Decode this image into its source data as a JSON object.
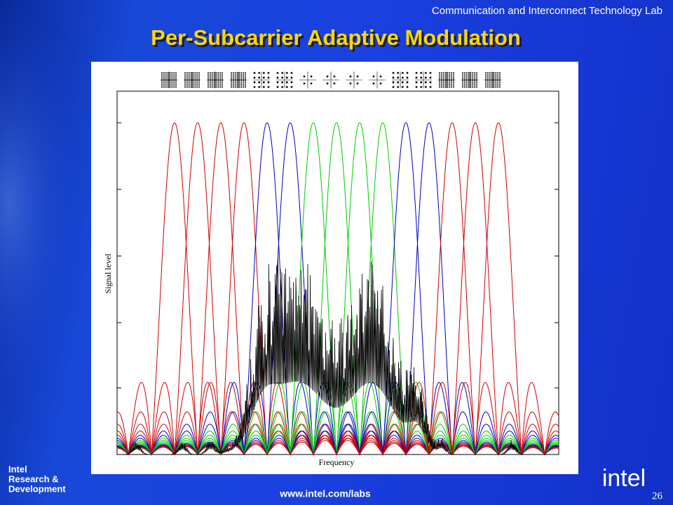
{
  "header": {
    "lab": "Communication and Interconnect Technology Lab"
  },
  "title": "Per-Subcarrier Adaptive Modulation",
  "chart_data": {
    "type": "line",
    "x_label": "Frequency",
    "y_label": "Signal level",
    "subcarrier_colors": [
      "#d00000",
      "#d00000",
      "#d00000",
      "#d00000",
      "#0000c0",
      "#0000c0",
      "#00cc00",
      "#00cc00",
      "#00cc00",
      "#00cc00",
      "#0000c0",
      "#0000c0",
      "#d00000",
      "#d00000",
      "#d00000"
    ],
    "constellation_sizes": [
      64,
      64,
      64,
      64,
      16,
      16,
      4,
      4,
      4,
      4,
      16,
      16,
      64,
      64,
      64
    ],
    "channel_color": "#000000"
  },
  "footer": {
    "url": "www.intel.com/labs",
    "page": "26",
    "org_line1": "Intel",
    "org_line2": "Research &",
    "org_line3": "Development",
    "logo": "intel"
  }
}
